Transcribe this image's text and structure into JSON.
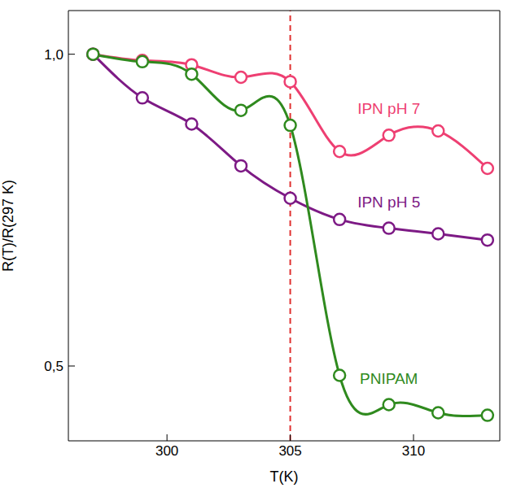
{
  "chart_data": {
    "type": "line",
    "xlabel": "T(K)",
    "ylabel": "R(T)/R(297 K)",
    "x": [
      297,
      299,
      301,
      303,
      305,
      307,
      309,
      311,
      313
    ],
    "series": [
      {
        "name": "IPN pH 7",
        "color": "#ee3f72",
        "marker": "circle",
        "line_style": "solid",
        "values": [
          1.0,
          0.99,
          0.983,
          0.963,
          0.956,
          0.844,
          0.87,
          0.877,
          0.817
        ]
      },
      {
        "name": "IPN pH 5",
        "color": "#7d1a85",
        "marker": "circle",
        "line_style": "solid",
        "values": [
          1.0,
          0.93,
          0.888,
          0.821,
          0.769,
          0.735,
          0.721,
          0.712,
          0.702
        ]
      },
      {
        "name": "PNIPAM",
        "color": "#2f8a1e",
        "marker": "circle",
        "line_style": "solid",
        "values": [
          1.0,
          0.988,
          0.968,
          0.91,
          0.886,
          0.485,
          0.438,
          0.425,
          0.421
        ]
      }
    ],
    "xlim": [
      296,
      313.5
    ],
    "xticks": [
      300,
      305,
      310
    ],
    "ylim": [
      0.38,
      1.07
    ],
    "yticks": [
      {
        "value": 1,
        "label": "1,0"
      },
      {
        "value": 0.5,
        "label": "0,5"
      }
    ],
    "vline": {
      "x": 305,
      "color": "#e0302f",
      "line_style": "dashed"
    },
    "grid": false
  }
}
